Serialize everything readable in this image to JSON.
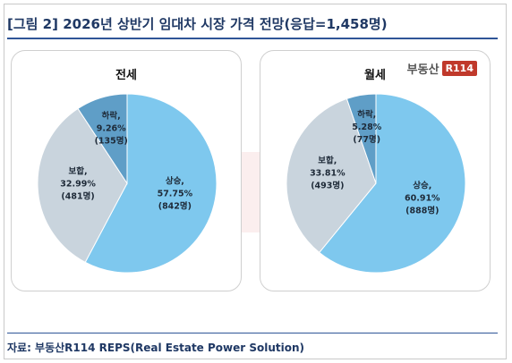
{
  "title": "[그림 2] 2026년 상반기 임대차 시장 가격 전망(응답=1,458명)",
  "source": "자료: 부동산R114 REPS(Real Estate Power Solution)",
  "logo": {
    "text": "부동산",
    "box": "R114"
  },
  "colors": {
    "rise": "#7ec8ee",
    "hold": "#c9d4dd",
    "fall": "#5f9ec7",
    "title": "#1f3864",
    "logo": "#c0392b"
  },
  "chart_data": [
    {
      "type": "pie",
      "title": "전세",
      "slices": [
        {
          "name": "상승",
          "value": 57.75,
          "pct_label": "57.75%",
          "count_label": "(842명)"
        },
        {
          "name": "보합",
          "value": 32.99,
          "pct_label": "32.99%",
          "count_label": "(481명)"
        },
        {
          "name": "하락",
          "value": 9.26,
          "pct_label": "9.26%",
          "count_label": "(135명)"
        }
      ]
    },
    {
      "type": "pie",
      "title": "월세",
      "slices": [
        {
          "name": "상승",
          "value": 60.91,
          "pct_label": "60.91%",
          "count_label": "(888명)"
        },
        {
          "name": "보합",
          "value": 33.81,
          "pct_label": "33.81%",
          "count_label": "(493명)"
        },
        {
          "name": "하락",
          "value": 5.28,
          "pct_label": "5.28%",
          "count_label": "(77명)"
        }
      ]
    }
  ]
}
